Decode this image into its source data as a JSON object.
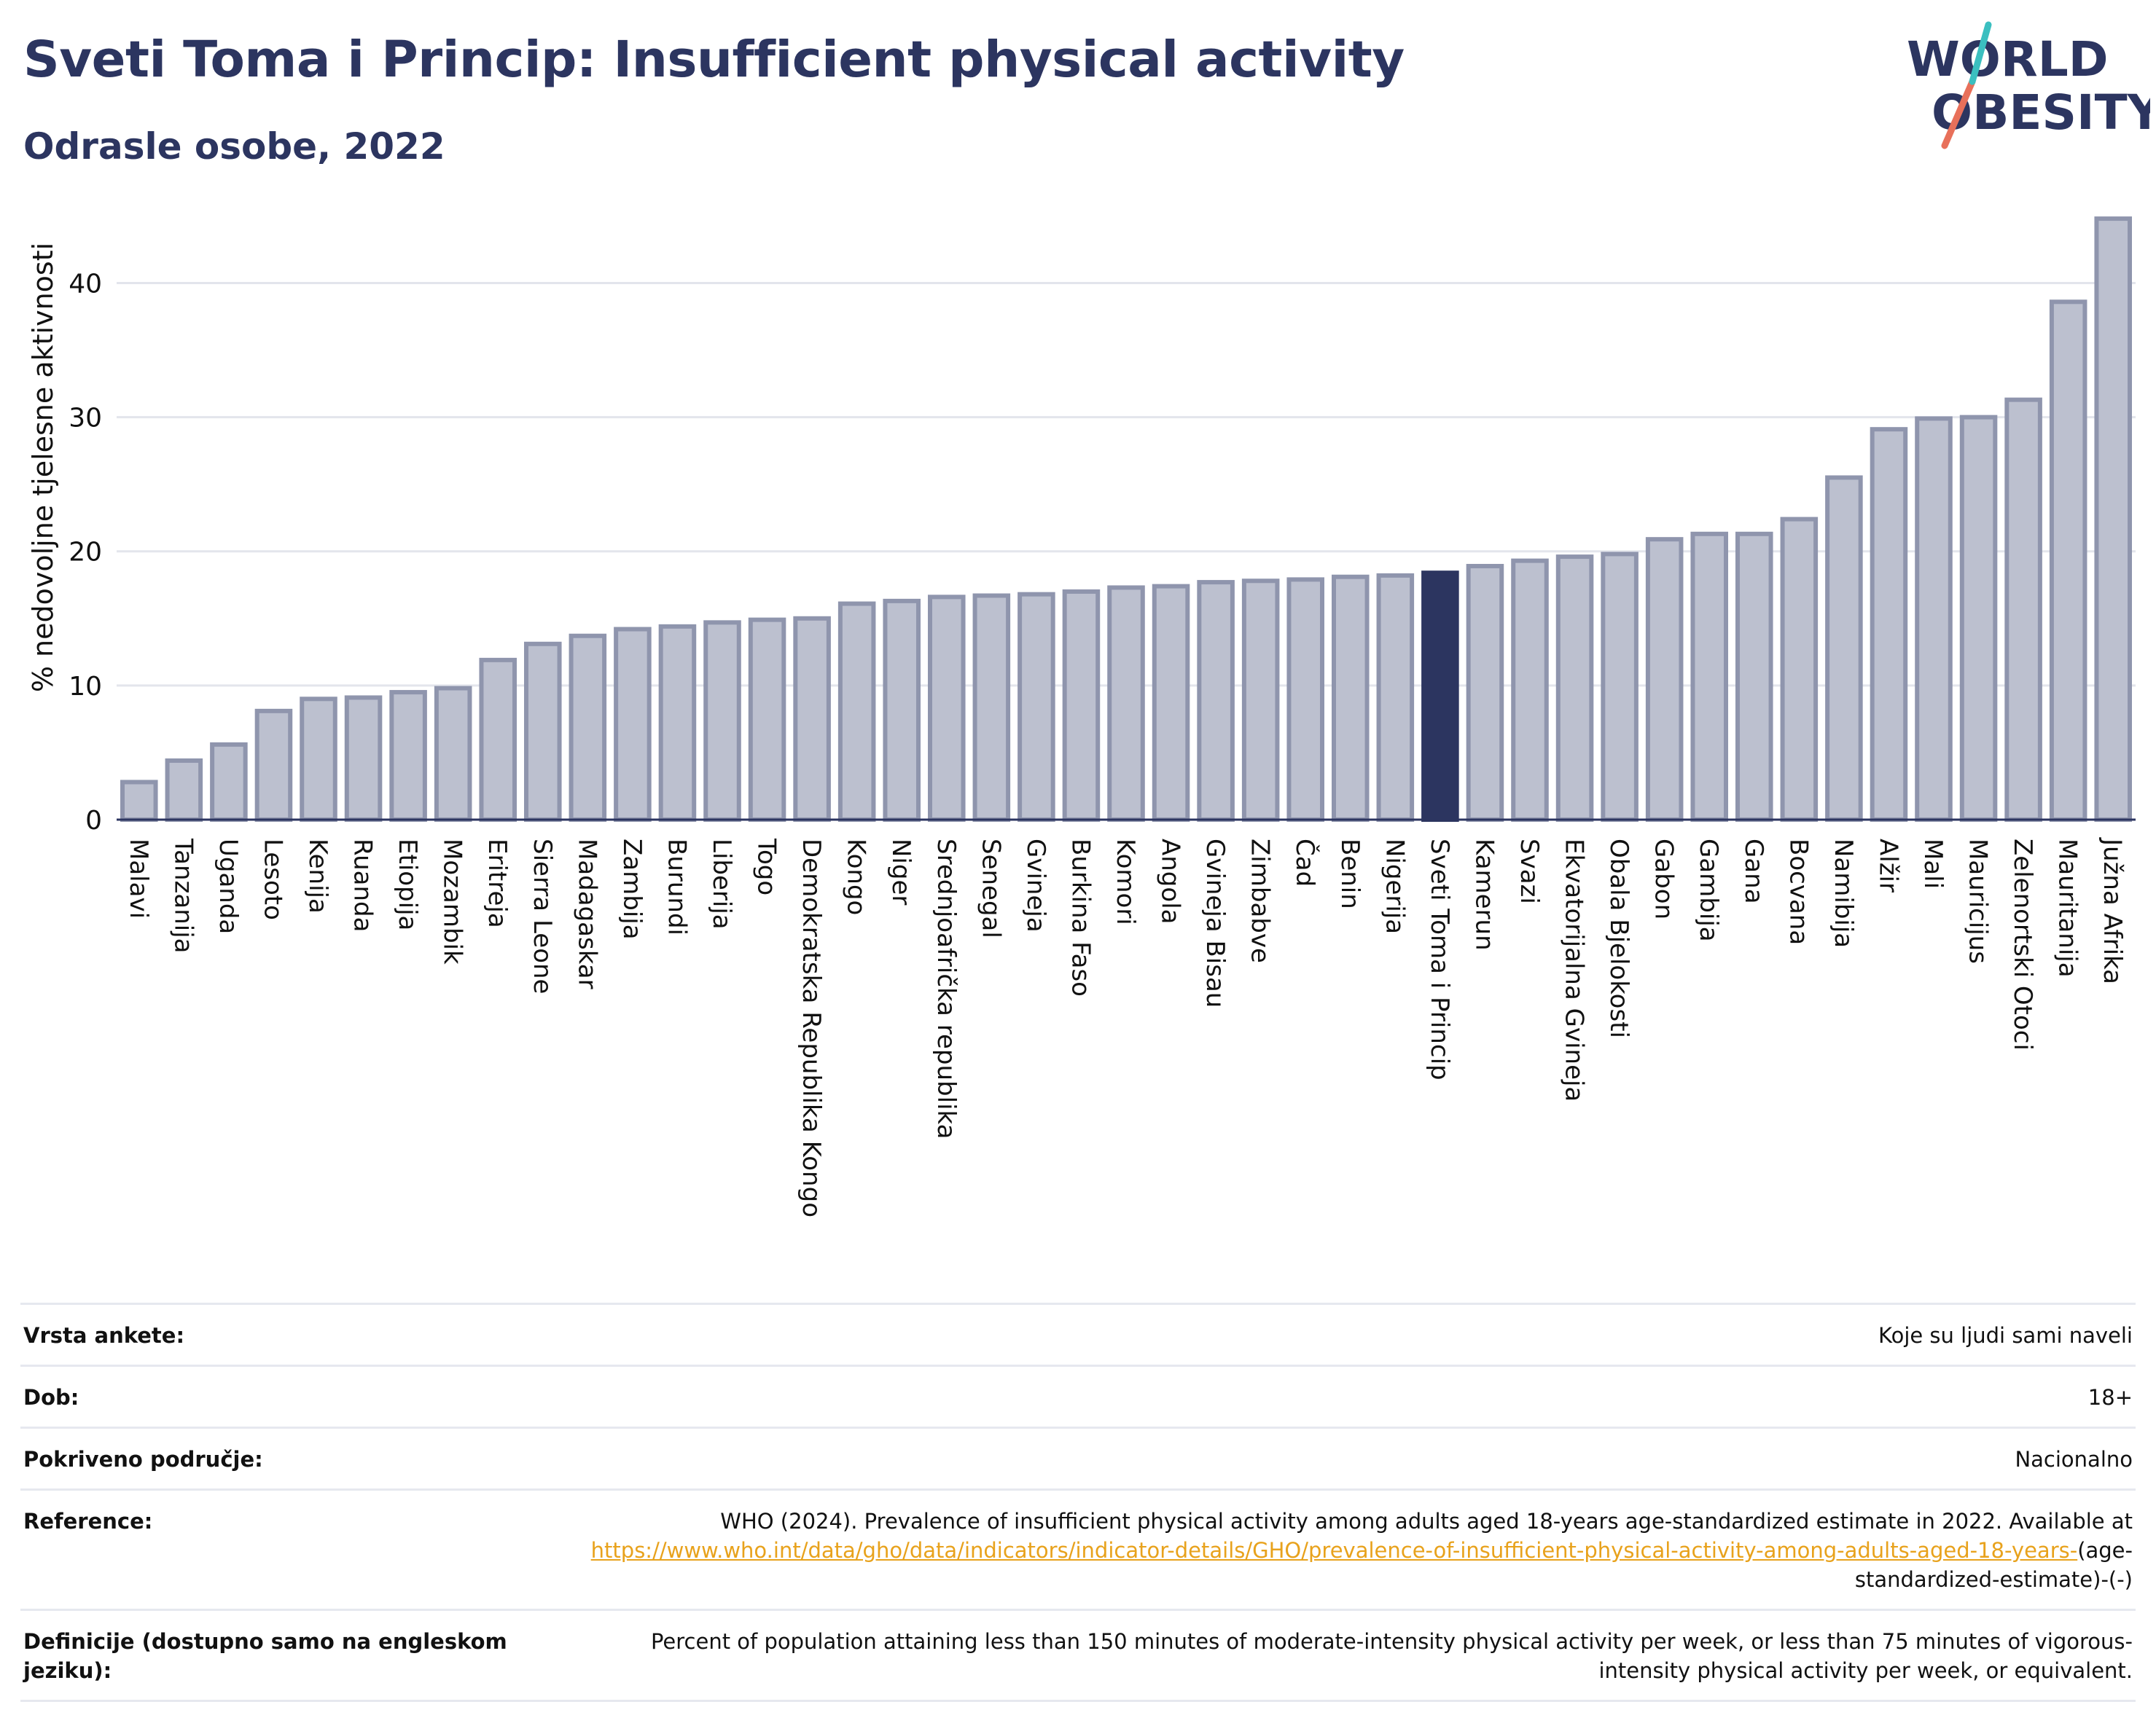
{
  "header": {
    "title": "Sveti Toma i Princip: Insufficient physical activity",
    "subtitle": "Odrasle osobe, 2022"
  },
  "logo": {
    "line1": "WORLD",
    "line2": "OBESITY",
    "colors": {
      "text": "#2c3560",
      "slash_top": "#3bbfc0",
      "slash_bottom": "#e8705a"
    }
  },
  "colors": {
    "bar": "#bcc0cf",
    "bar_border": "#8f95ad",
    "highlight": "#2c3560",
    "grid": "#e3e5ec",
    "axis": "#2c3560"
  },
  "chart_data": {
    "type": "bar",
    "ylabel": "% nedovoljne tjelesne aktivnosti",
    "xlabel": "",
    "ylim": [
      0,
      46
    ],
    "yticks": [
      0,
      10,
      20,
      30,
      40
    ],
    "grid": true,
    "highlight": "Sveti Toma i Princip",
    "categories": [
      "Malavi",
      "Tanzanija",
      "Uganda",
      "Lesoto",
      "Kenija",
      "Ruanda",
      "Etiopija",
      "Mozambik",
      "Eritreja",
      "Sierra Leone",
      "Madagaskar",
      "Zambija",
      "Burundi",
      "Liberija",
      "Togo",
      "Demokratska Republika Kongo",
      "Kongo",
      "Niger",
      "Srednjoafrička republika",
      "Senegal",
      "Gvineja",
      "Burkina Faso",
      "Komori",
      "Angola",
      "Gvineja Bisau",
      "Zimbabve",
      "Čad",
      "Benin",
      "Nigerija",
      "Sveti Toma i Princip",
      "Kamerun",
      "Svazi",
      "Ekvatorijalna Gvineja",
      "Obala Bjelokosti",
      "Gabon",
      "Gambija",
      "Gana",
      "Bocvana",
      "Namibija",
      "Alžir",
      "Mali",
      "Mauricijus",
      "Zelenortski Otoci",
      "Mauritanija",
      "Južna Afrika"
    ],
    "values": [
      2.8,
      4.4,
      5.6,
      8.1,
      9.0,
      9.1,
      9.5,
      9.8,
      11.9,
      13.1,
      13.7,
      14.2,
      14.4,
      14.7,
      14.9,
      15.0,
      16.1,
      16.3,
      16.6,
      16.7,
      16.8,
      17.0,
      17.3,
      17.4,
      17.7,
      17.8,
      17.9,
      18.1,
      18.2,
      18.4,
      18.9,
      19.3,
      19.6,
      19.8,
      20.9,
      21.3,
      21.3,
      22.4,
      25.5,
      29.1,
      29.9,
      30.0,
      31.3,
      38.6,
      44.8
    ]
  },
  "info": {
    "rows": [
      {
        "label": "Vrsta ankete:",
        "value": "Koje su ljudi sami naveli"
      },
      {
        "label": "Dob:",
        "value": "18+"
      },
      {
        "label": "Pokriveno područje:",
        "value": "Nacionalno"
      }
    ],
    "reference": {
      "label": "Reference:",
      "text": "WHO (2024). Prevalence of insufficient physical activity among adults aged 18-years age-standardized estimate in 2022. Available at",
      "link": "https://www.who.int/data/gho/data/indicators/indicator-details/GHO/prevalence-of-insufficient-physical-activity-among-adults-aged-18-years-",
      "suffix": "(age-standardized-estimate)-(-)"
    },
    "definition": {
      "label": "Definicije (dostupno samo na engleskom jeziku):",
      "value": "Percent of population attaining less than 150 minutes of moderate-intensity physical activity per week, or less than 75 minutes of vigorous-intensity physical activity per week, or equivalent."
    }
  }
}
